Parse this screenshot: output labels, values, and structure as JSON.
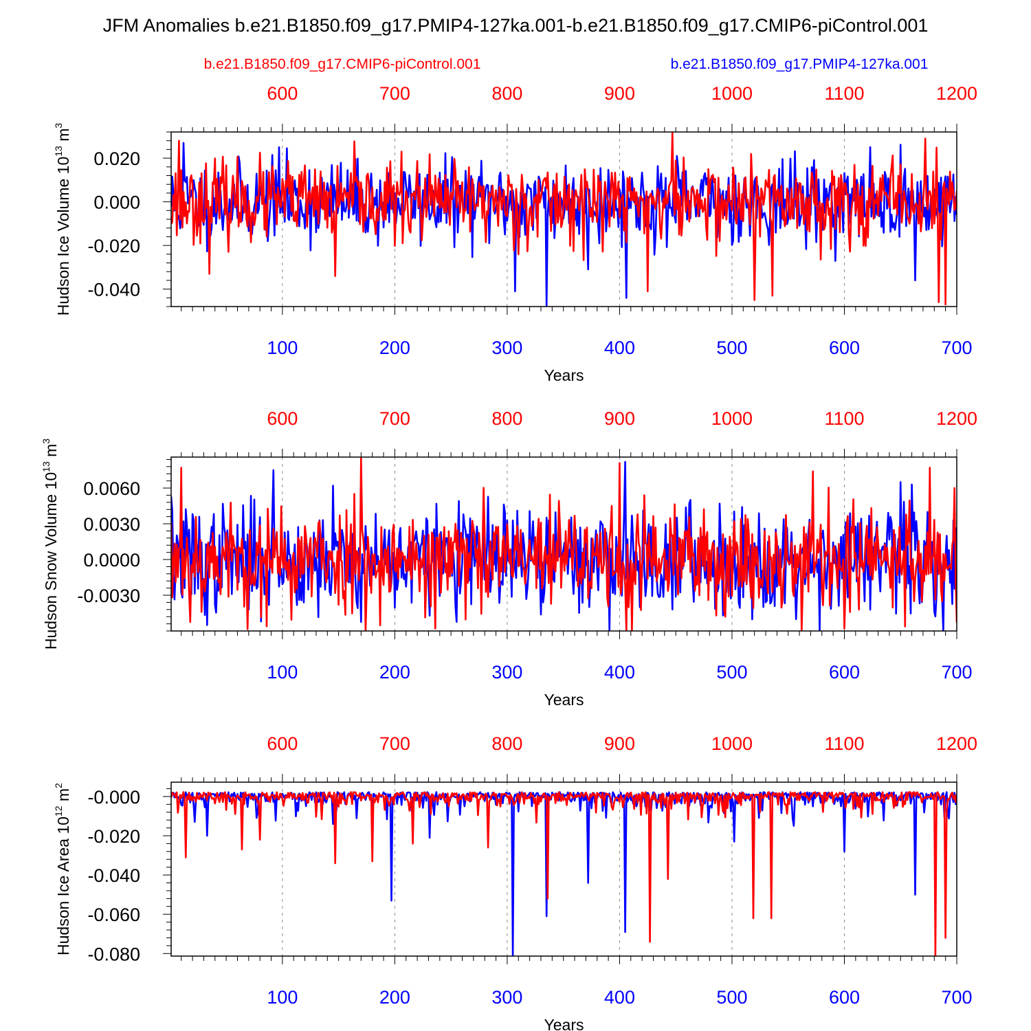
{
  "title": "JFM Anomalies b.e21.B1850.f09_g17.PMIP4-127ka.001-b.e21.B1850.f09_g17.CMIP6-piControl.001",
  "legend": {
    "left": {
      "label": "b.e21.B1850.f09_g17.CMIP6-piControl.001",
      "color": "#ff0000"
    },
    "right": {
      "label": "b.e21.B1850.f09_g17.PMIP4-127ka.001",
      "color": "#0000ff"
    }
  },
  "colors": {
    "control": "#ff0000",
    "pmip": "#0000ff",
    "frame": "#000000",
    "grid": "#888888"
  },
  "chart_data": [
    {
      "type": "line",
      "panel": "ice-volume",
      "ylabel": {
        "main": "Hudson Ice Volume 10",
        "exp": "13",
        "unit": " m",
        "unit_exp": "3"
      },
      "xlabel": "Years",
      "xlim_bottom": [
        1,
        700
      ],
      "xlim_top": [
        501,
        1200
      ],
      "ylim": [
        -0.048,
        0.032
      ],
      "xticks_bottom": [
        "100",
        "200",
        "300",
        "400",
        "500",
        "600",
        "700"
      ],
      "xticks_top": [
        "600",
        "700",
        "800",
        "900",
        "1000",
        "1100",
        "1200"
      ],
      "yticks": [
        {
          "v": 0.02,
          "label": "0.020"
        },
        {
          "v": 0.0,
          "label": "0.000"
        },
        {
          "v": -0.02,
          "label": "-0.020"
        },
        {
          "v": -0.04,
          "label": "-0.040"
        }
      ],
      "grid": "vertical-dashed",
      "series_shape": {
        "std": 0.009,
        "skew": 0.0,
        "seed_pmip": 11,
        "seed_ctrl": 23
      },
      "series": [
        {
          "name": "b.e21.B1850.f09_g17.PMIP4-127ka.001",
          "color": "#0000ff",
          "x_axis": "bottom",
          "extremes": [
            [
              335,
              -0.048
            ],
            [
              307,
              -0.041
            ],
            [
              406,
              -0.044
            ],
            [
              12,
              0.027
            ],
            [
              97,
              0.025
            ],
            [
              372,
              -0.031
            ],
            [
              663,
              -0.036
            ]
          ]
        },
        {
          "name": "b.e21.B1850.f09_g17.CMIP6-piControl.001",
          "color": "#ff0000",
          "x_axis": "bottom",
          "extremes": [
            [
              447,
              0.032
            ],
            [
              672,
              0.029
            ],
            [
              8,
              0.028
            ],
            [
              35,
              -0.033
            ],
            [
              147,
              -0.034
            ],
            [
              520,
              -0.045
            ],
            [
              536,
              -0.043
            ],
            [
              684,
              -0.046
            ],
            [
              690,
              -0.047
            ],
            [
              425,
              -0.041
            ]
          ]
        }
      ]
    },
    {
      "type": "line",
      "panel": "snow-volume",
      "ylabel": {
        "main": "Hudson Snow Volume 10",
        "exp": "13",
        "unit": " m",
        "unit_exp": "3"
      },
      "xlabel": "Years",
      "xlim_bottom": [
        1,
        700
      ],
      "xlim_top": [
        501,
        1200
      ],
      "ylim": [
        -0.006,
        0.0086
      ],
      "xticks_bottom": [
        "100",
        "200",
        "300",
        "400",
        "500",
        "600",
        "700"
      ],
      "xticks_top": [
        "600",
        "700",
        "800",
        "900",
        "1000",
        "1100",
        "1200"
      ],
      "yticks": [
        {
          "v": 0.006,
          "label": "0.0060"
        },
        {
          "v": 0.003,
          "label": "0.0030"
        },
        {
          "v": 0.0,
          "label": "0.0000"
        },
        {
          "v": -0.003,
          "label": "-0.0030"
        }
      ],
      "grid": "vertical-dashed",
      "series_shape": {
        "std": 0.0022,
        "skew": 0.0,
        "seed_pmip": 37,
        "seed_ctrl": 53
      },
      "series": [
        {
          "name": "b.e21.B1850.f09_g17.PMIP4-127ka.001",
          "color": "#0000ff",
          "x_axis": "bottom",
          "extremes": [
            [
              1,
              0.0053
            ],
            [
              33,
              -0.0055
            ],
            [
              92,
              0.0075
            ],
            [
              405,
              0.0082
            ],
            [
              145,
              0.0062
            ],
            [
              650,
              0.0065
            ],
            [
              660,
              0.0063
            ],
            [
              600,
              -0.0043
            ]
          ]
        },
        {
          "name": "b.e21.B1850.f09_g17.CMIP6-piControl.001",
          "color": "#ff0000",
          "x_axis": "bottom",
          "extremes": [
            [
              10,
              0.0077
            ],
            [
              170,
              0.0086
            ],
            [
              86,
              -0.0056
            ],
            [
              236,
              -0.0058
            ],
            [
              406,
              -0.006
            ],
            [
              411,
              -0.006
            ],
            [
              400,
              0.0081
            ],
            [
              572,
              0.0074
            ],
            [
              676,
              0.0077
            ],
            [
              698,
              0.006
            ],
            [
              700,
              -0.0053
            ]
          ]
        }
      ]
    },
    {
      "type": "line",
      "panel": "ice-area",
      "ylabel": {
        "main": "Hudson Ice Area 10",
        "exp": "12",
        "unit": " m",
        "unit_exp": "2"
      },
      "xlabel": "Years",
      "xlim_bottom": [
        1,
        700
      ],
      "xlim_top": [
        501,
        1200
      ],
      "ylim": [
        -0.0813,
        0.0073
      ],
      "xticks_bottom": [
        "100",
        "200",
        "300",
        "400",
        "500",
        "600",
        "700"
      ],
      "xticks_top": [
        "600",
        "700",
        "800",
        "900",
        "1000",
        "1100",
        "1200"
      ],
      "yticks": [
        {
          "v": 0.0,
          "label": "-0.000"
        },
        {
          "v": -0.02,
          "label": "-0.020"
        },
        {
          "v": -0.04,
          "label": "-0.040"
        },
        {
          "v": -0.06,
          "label": "-0.060"
        },
        {
          "v": -0.08,
          "label": "-0.080"
        }
      ],
      "grid": "vertical-dashed",
      "series_shape": {
        "std": 0.0025,
        "skew": 1.0,
        "seed_pmip": 71,
        "seed_ctrl": 89
      },
      "series": [
        {
          "name": "b.e21.B1850.f09_g17.PMIP4-127ka.001",
          "color": "#0000ff",
          "x_axis": "bottom",
          "extremes": [
            [
              33,
              -0.02
            ],
            [
              145,
              -0.014
            ],
            [
              197,
              -0.053
            ],
            [
              231,
              -0.021
            ],
            [
              305,
              -0.081
            ],
            [
              335,
              -0.061
            ],
            [
              372,
              -0.044
            ],
            [
              405,
              -0.069
            ],
            [
              502,
              -0.023
            ],
            [
              600,
              -0.028
            ],
            [
              663,
              -0.05
            ]
          ]
        },
        {
          "name": "b.e21.B1850.f09_g17.CMIP6-piControl.001",
          "color": "#ff0000",
          "x_axis": "bottom",
          "extremes": [
            [
              14,
              -0.031
            ],
            [
              64,
              -0.027
            ],
            [
              80,
              -0.022
            ],
            [
              147,
              -0.034
            ],
            [
              180,
              -0.033
            ],
            [
              216,
              -0.024
            ],
            [
              283,
              -0.026
            ],
            [
              336,
              -0.052
            ],
            [
              427,
              -0.074
            ],
            [
              443,
              -0.042
            ],
            [
              519,
              -0.062
            ],
            [
              535,
              -0.062
            ],
            [
              681,
              -0.082
            ],
            [
              690,
              -0.072
            ]
          ]
        }
      ]
    }
  ]
}
